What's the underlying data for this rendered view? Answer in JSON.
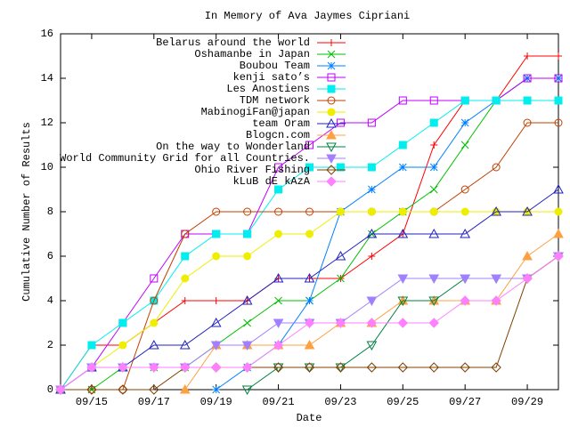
{
  "chart_data": {
    "type": "line",
    "title": "In Memory of Ava Jaymes Cipriani",
    "x_label": "Date",
    "y_label": "Cumulative Number of Results",
    "x": [
      14,
      15,
      16,
      17,
      18,
      19,
      20,
      21,
      22,
      23,
      24,
      25,
      26,
      27,
      28,
      29,
      30
    ],
    "xlim": [
      14,
      30
    ],
    "xticks": [
      {
        "value": 15,
        "label": "09/15"
      },
      {
        "value": 17,
        "label": "09/17"
      },
      {
        "value": 19,
        "label": "09/19"
      },
      {
        "value": 21,
        "label": "09/21"
      },
      {
        "value": 23,
        "label": "09/23"
      },
      {
        "value": 25,
        "label": "09/25"
      },
      {
        "value": 27,
        "label": "09/27"
      },
      {
        "value": 29,
        "label": "09/29"
      }
    ],
    "ylim": [
      0,
      16
    ],
    "yticks": [
      0,
      2,
      4,
      6,
      8,
      10,
      12,
      14,
      16
    ],
    "grid": false,
    "legend": "top-left",
    "series": [
      {
        "name": "Belarus around the world",
        "color": "#ff0000",
        "marker": "plus",
        "values": [
          0,
          2,
          2,
          3,
          4,
          4,
          4,
          5,
          5,
          5,
          6,
          7,
          11,
          13,
          13,
          15,
          15
        ]
      },
      {
        "name": "Oshamanbe in Japan",
        "color": "#00c000",
        "marker": "cross",
        "values": [
          0,
          0,
          1,
          1,
          1,
          2,
          3,
          4,
          4,
          5,
          7,
          8,
          9,
          11,
          13,
          14,
          14
        ]
      },
      {
        "name": "Boubou Team",
        "color": "#0080ff",
        "marker": "star",
        "values": [
          null,
          null,
          null,
          null,
          null,
          0,
          1,
          2,
          4,
          8,
          9,
          10,
          10,
          12,
          13,
          14,
          14
        ]
      },
      {
        "name": "kenji sato’s",
        "color": "#c000ff",
        "marker": "square",
        "values": [
          0,
          1,
          3,
          5,
          7,
          7,
          7,
          10,
          11,
          12,
          12,
          13,
          13,
          13,
          13,
          14,
          14
        ]
      },
      {
        "name": "Les Anostiens",
        "color": "#00eeee",
        "marker": "square-filled",
        "values": [
          0,
          2,
          3,
          4,
          6,
          7,
          7,
          9,
          10,
          10,
          10,
          11,
          12,
          13,
          13,
          13,
          13
        ]
      },
      {
        "name": "TDM network",
        "color": "#c04000",
        "marker": "circle",
        "values": [
          0,
          0,
          0,
          4,
          7,
          8,
          8,
          8,
          8,
          8,
          8,
          8,
          8,
          9,
          10,
          12,
          12
        ]
      },
      {
        "name": "MabinogiFan@japan",
        "color": "#eeee00",
        "marker": "circle-filled",
        "values": [
          0,
          1,
          2,
          3,
          5,
          6,
          6,
          7,
          7,
          8,
          8,
          8,
          8,
          8,
          8,
          8,
          8
        ]
      },
      {
        "name": "team Oram",
        "color": "#2020c0",
        "marker": "triangle",
        "values": [
          0,
          1,
          1,
          2,
          2,
          3,
          4,
          5,
          5,
          6,
          7,
          7,
          7,
          7,
          8,
          8,
          9
        ]
      },
      {
        "name": "Blogcn.com",
        "color": "#ffa040",
        "marker": "triangle-filled",
        "values": [
          null,
          null,
          null,
          null,
          0,
          2,
          2,
          2,
          2,
          3,
          3,
          4,
          4,
          4,
          4,
          6,
          7
        ]
      },
      {
        "name": "On the way to Wonderland",
        "color": "#008040",
        "marker": "down",
        "values": [
          null,
          null,
          null,
          null,
          null,
          null,
          0,
          1,
          1,
          1,
          2,
          4,
          4,
          5,
          5,
          5,
          6
        ]
      },
      {
        "name": "World Community Grid for all Countries.",
        "color": "#a080ff",
        "marker": "down-filled",
        "values": [
          0,
          1,
          1,
          1,
          1,
          2,
          2,
          3,
          3,
          3,
          4,
          5,
          5,
          5,
          5,
          5,
          6
        ]
      },
      {
        "name": "Ohio River Fishing",
        "color": "#804000",
        "marker": "diamond",
        "values": [
          0,
          0,
          0,
          0,
          1,
          1,
          1,
          1,
          1,
          1,
          1,
          1,
          1,
          1,
          1,
          5,
          6
        ]
      },
      {
        "name": "kLuB dE kAzA",
        "color": "#ff80ff",
        "marker": "diamond-filled",
        "values": [
          0,
          1,
          1,
          1,
          1,
          1,
          1,
          2,
          3,
          3,
          3,
          3,
          3,
          4,
          4,
          5,
          6
        ]
      }
    ]
  }
}
